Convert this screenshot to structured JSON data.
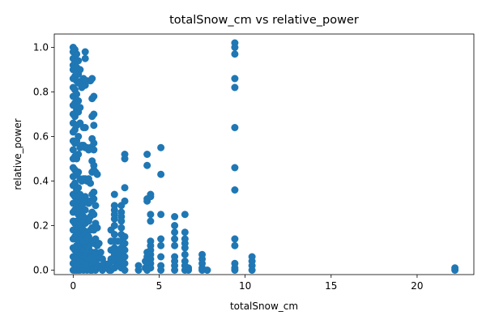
{
  "chart_data": {
    "type": "scatter",
    "title": "totalSnow_cm vs relative_power",
    "xlabel": "totalSnow_cm",
    "ylabel": "relative_power",
    "xlim": [
      -1.1,
      23.3
    ],
    "ylim": [
      -0.02,
      1.06
    ],
    "xticks": [
      0,
      5,
      10,
      15,
      20
    ],
    "xtick_labels": [
      "0",
      "5",
      "10",
      "15",
      "20"
    ],
    "yticks": [
      0.0,
      0.2,
      0.4,
      0.6,
      0.8,
      1.0
    ],
    "ytick_labels": [
      "0.0",
      "0.2",
      "0.4",
      "0.6",
      "0.8",
      "1.0"
    ],
    "grid": false,
    "marker_color": "#1f77b4",
    "series": [
      {
        "points": [
          [
            0.0,
            1.0
          ],
          [
            0.0,
            0.98
          ],
          [
            0.0,
            0.95
          ],
          [
            0.0,
            0.92
          ],
          [
            0.0,
            0.9
          ],
          [
            0.0,
            0.86
          ],
          [
            0.0,
            0.82
          ],
          [
            0.0,
            0.78
          ],
          [
            0.0,
            0.74
          ],
          [
            0.0,
            0.7
          ],
          [
            0.0,
            0.66
          ],
          [
            0.0,
            0.62
          ],
          [
            0.0,
            0.58
          ],
          [
            0.0,
            0.54
          ],
          [
            0.0,
            0.5
          ],
          [
            0.0,
            0.46
          ],
          [
            0.0,
            0.42
          ],
          [
            0.0,
            0.38
          ],
          [
            0.0,
            0.34
          ],
          [
            0.0,
            0.3
          ],
          [
            0.0,
            0.26
          ],
          [
            0.0,
            0.22
          ],
          [
            0.0,
            0.18
          ],
          [
            0.0,
            0.14
          ],
          [
            0.0,
            0.1
          ],
          [
            0.0,
            0.06
          ],
          [
            0.0,
            0.03
          ],
          [
            0.0,
            0.0
          ],
          [
            0.1,
            0.99
          ],
          [
            0.1,
            0.93
          ],
          [
            0.1,
            0.87
          ],
          [
            0.1,
            0.81
          ],
          [
            0.1,
            0.75
          ],
          [
            0.1,
            0.69
          ],
          [
            0.1,
            0.63
          ],
          [
            0.1,
            0.57
          ],
          [
            0.1,
            0.51
          ],
          [
            0.1,
            0.45
          ],
          [
            0.1,
            0.39
          ],
          [
            0.1,
            0.33
          ],
          [
            0.1,
            0.27
          ],
          [
            0.1,
            0.21
          ],
          [
            0.1,
            0.15
          ],
          [
            0.1,
            0.09
          ],
          [
            0.1,
            0.04
          ],
          [
            0.1,
            0.0
          ],
          [
            0.2,
            0.97
          ],
          [
            0.2,
            0.91
          ],
          [
            0.2,
            0.85
          ],
          [
            0.2,
            0.79
          ],
          [
            0.2,
            0.72
          ],
          [
            0.2,
            0.65
          ],
          [
            0.2,
            0.58
          ],
          [
            0.2,
            0.5
          ],
          [
            0.2,
            0.43
          ],
          [
            0.2,
            0.36
          ],
          [
            0.2,
            0.29
          ],
          [
            0.2,
            0.22
          ],
          [
            0.2,
            0.16
          ],
          [
            0.2,
            0.11
          ],
          [
            0.2,
            0.06
          ],
          [
            0.2,
            0.02
          ],
          [
            0.2,
            0.0
          ],
          [
            0.3,
            0.94
          ],
          [
            0.3,
            0.88
          ],
          [
            0.3,
            0.84
          ],
          [
            0.3,
            0.76
          ],
          [
            0.3,
            0.71
          ],
          [
            0.3,
            0.6
          ],
          [
            0.3,
            0.52
          ],
          [
            0.3,
            0.44
          ],
          [
            0.3,
            0.37
          ],
          [
            0.3,
            0.31
          ],
          [
            0.3,
            0.25
          ],
          [
            0.3,
            0.19
          ],
          [
            0.3,
            0.13
          ],
          [
            0.3,
            0.08
          ],
          [
            0.3,
            0.03
          ],
          [
            0.3,
            0.0
          ],
          [
            0.4,
            0.9
          ],
          [
            0.4,
            0.84
          ],
          [
            0.4,
            0.73
          ],
          [
            0.4,
            0.66
          ],
          [
            0.4,
            0.55
          ],
          [
            0.4,
            0.41
          ],
          [
            0.4,
            0.34
          ],
          [
            0.4,
            0.28
          ],
          [
            0.4,
            0.23
          ],
          [
            0.4,
            0.17
          ],
          [
            0.4,
            0.12
          ],
          [
            0.4,
            0.07
          ],
          [
            0.4,
            0.03
          ],
          [
            0.4,
            0.0
          ],
          [
            0.5,
            0.85
          ],
          [
            0.5,
            0.82
          ],
          [
            0.5,
            0.56
          ],
          [
            0.5,
            0.4
          ],
          [
            0.5,
            0.32
          ],
          [
            0.5,
            0.26
          ],
          [
            0.5,
            0.2
          ],
          [
            0.5,
            0.15
          ],
          [
            0.5,
            0.1
          ],
          [
            0.5,
            0.05
          ],
          [
            0.5,
            0.01
          ],
          [
            0.6,
            0.86
          ],
          [
            0.6,
            0.64
          ],
          [
            0.6,
            0.56
          ],
          [
            0.6,
            0.41
          ],
          [
            0.6,
            0.3
          ],
          [
            0.6,
            0.24
          ],
          [
            0.6,
            0.18
          ],
          [
            0.6,
            0.13
          ],
          [
            0.6,
            0.09
          ],
          [
            0.6,
            0.04
          ],
          [
            0.6,
            0.0
          ],
          [
            0.7,
            0.98
          ],
          [
            0.7,
            0.95
          ],
          [
            0.7,
            0.85
          ],
          [
            0.7,
            0.83
          ],
          [
            0.7,
            0.64
          ],
          [
            0.7,
            0.55
          ],
          [
            0.7,
            0.41
          ],
          [
            0.7,
            0.33
          ],
          [
            0.7,
            0.27
          ],
          [
            0.7,
            0.21
          ],
          [
            0.7,
            0.16
          ],
          [
            0.7,
            0.11
          ],
          [
            0.7,
            0.06
          ],
          [
            0.7,
            0.02
          ],
          [
            0.8,
            0.85
          ],
          [
            0.8,
            0.55
          ],
          [
            0.8,
            0.4
          ],
          [
            0.8,
            0.31
          ],
          [
            0.8,
            0.23
          ],
          [
            0.8,
            0.17
          ],
          [
            0.8,
            0.12
          ],
          [
            0.8,
            0.07
          ],
          [
            0.8,
            0.03
          ],
          [
            0.8,
            0.0
          ],
          [
            0.9,
            0.54
          ],
          [
            0.9,
            0.41
          ],
          [
            0.9,
            0.3
          ],
          [
            0.9,
            0.22
          ],
          [
            0.9,
            0.15
          ],
          [
            0.9,
            0.1
          ],
          [
            0.9,
            0.05
          ],
          [
            0.9,
            0.01
          ],
          [
            1.0,
            0.85
          ],
          [
            1.0,
            0.55
          ],
          [
            1.0,
            0.39
          ],
          [
            1.0,
            0.31
          ],
          [
            1.0,
            0.24
          ],
          [
            1.0,
            0.18
          ],
          [
            1.0,
            0.12
          ],
          [
            1.0,
            0.07
          ],
          [
            1.0,
            0.03
          ],
          [
            1.0,
            0.0
          ],
          [
            1.1,
            0.86
          ],
          [
            1.1,
            0.77
          ],
          [
            1.1,
            0.69
          ],
          [
            1.1,
            0.59
          ],
          [
            1.1,
            0.49
          ],
          [
            1.1,
            0.44
          ],
          [
            1.1,
            0.34
          ],
          [
            1.1,
            0.26
          ],
          [
            1.1,
            0.19
          ],
          [
            1.1,
            0.13
          ],
          [
            1.1,
            0.08
          ],
          [
            1.1,
            0.03
          ],
          [
            1.1,
            0.0
          ],
          [
            1.2,
            0.78
          ],
          [
            1.2,
            0.7
          ],
          [
            1.2,
            0.65
          ],
          [
            1.2,
            0.57
          ],
          [
            1.2,
            0.54
          ],
          [
            1.2,
            0.47
          ],
          [
            1.2,
            0.45
          ],
          [
            1.2,
            0.35
          ],
          [
            1.2,
            0.32
          ],
          [
            1.2,
            0.25
          ],
          [
            1.2,
            0.18
          ],
          [
            1.2,
            0.12
          ],
          [
            1.2,
            0.06
          ],
          [
            1.2,
            0.01
          ],
          [
            1.3,
            0.44
          ],
          [
            1.3,
            0.29
          ],
          [
            1.3,
            0.21
          ],
          [
            1.3,
            0.14
          ],
          [
            1.3,
            0.08
          ],
          [
            1.3,
            0.03
          ],
          [
            1.3,
            0.0
          ],
          [
            1.4,
            0.43
          ],
          [
            1.4,
            0.19
          ],
          [
            1.4,
            0.11
          ],
          [
            1.4,
            0.05
          ],
          [
            1.4,
            0.01
          ],
          [
            1.5,
            0.12
          ],
          [
            1.5,
            0.06
          ],
          [
            1.5,
            0.02
          ],
          [
            1.6,
            0.08
          ],
          [
            1.6,
            0.01
          ],
          [
            1.7,
            0.05
          ],
          [
            1.7,
            0.0
          ],
          [
            1.8,
            0.03
          ],
          [
            1.9,
            0.01
          ],
          [
            2.0,
            0.01
          ],
          [
            2.1,
            0.03
          ],
          [
            2.1,
            0.0
          ],
          [
            2.2,
            0.18
          ],
          [
            2.2,
            0.13
          ],
          [
            2.2,
            0.09
          ],
          [
            2.2,
            0.05
          ],
          [
            2.2,
            0.0
          ],
          [
            2.4,
            0.34
          ],
          [
            2.4,
            0.29
          ],
          [
            2.4,
            0.27
          ],
          [
            2.4,
            0.25
          ],
          [
            2.4,
            0.23
          ],
          [
            2.4,
            0.2
          ],
          [
            2.4,
            0.16
          ],
          [
            2.4,
            0.13
          ],
          [
            2.4,
            0.1
          ],
          [
            2.4,
            0.07
          ],
          [
            2.4,
            0.04
          ],
          [
            2.4,
            0.01
          ],
          [
            2.6,
            0.13
          ],
          [
            2.6,
            0.09
          ],
          [
            2.6,
            0.05
          ],
          [
            2.6,
            0.02
          ],
          [
            2.8,
            0.29
          ],
          [
            2.8,
            0.26
          ],
          [
            2.8,
            0.24
          ],
          [
            2.8,
            0.22
          ],
          [
            2.8,
            0.19
          ],
          [
            2.8,
            0.16
          ],
          [
            2.8,
            0.13
          ],
          [
            2.8,
            0.1
          ],
          [
            2.8,
            0.07
          ],
          [
            2.8,
            0.04
          ],
          [
            2.8,
            0.01
          ],
          [
            3.0,
            0.52
          ],
          [
            3.0,
            0.5
          ],
          [
            3.0,
            0.37
          ],
          [
            3.0,
            0.31
          ],
          [
            3.0,
            0.15
          ],
          [
            3.0,
            0.12
          ],
          [
            3.0,
            0.09
          ],
          [
            3.0,
            0.06
          ],
          [
            3.0,
            0.03
          ],
          [
            3.0,
            0.0
          ],
          [
            3.8,
            0.02
          ],
          [
            3.8,
            0.0
          ],
          [
            4.2,
            0.04
          ],
          [
            4.2,
            0.01
          ],
          [
            4.3,
            0.52
          ],
          [
            4.3,
            0.47
          ],
          [
            4.3,
            0.32
          ],
          [
            4.3,
            0.31
          ],
          [
            4.3,
            0.08
          ],
          [
            4.3,
            0.06
          ],
          [
            4.3,
            0.03
          ],
          [
            4.3,
            0.0
          ],
          [
            4.5,
            0.34
          ],
          [
            4.5,
            0.33
          ],
          [
            4.5,
            0.25
          ],
          [
            4.5,
            0.22
          ],
          [
            4.5,
            0.13
          ],
          [
            4.5,
            0.11
          ],
          [
            4.5,
            0.09
          ],
          [
            4.5,
            0.07
          ],
          [
            4.5,
            0.05
          ],
          [
            4.5,
            0.03
          ],
          [
            4.5,
            0.01
          ],
          [
            5.1,
            0.55
          ],
          [
            5.1,
            0.43
          ],
          [
            5.1,
            0.25
          ],
          [
            5.1,
            0.14
          ],
          [
            5.1,
            0.11
          ],
          [
            5.1,
            0.06
          ],
          [
            5.1,
            0.02
          ],
          [
            5.1,
            0.0
          ],
          [
            5.9,
            0.24
          ],
          [
            5.9,
            0.2
          ],
          [
            5.9,
            0.17
          ],
          [
            5.9,
            0.14
          ],
          [
            5.9,
            0.11
          ],
          [
            5.9,
            0.06
          ],
          [
            5.9,
            0.04
          ],
          [
            5.9,
            0.02
          ],
          [
            5.9,
            0.0
          ],
          [
            6.5,
            0.25
          ],
          [
            6.5,
            0.17
          ],
          [
            6.5,
            0.14
          ],
          [
            6.5,
            0.12
          ],
          [
            6.5,
            0.1
          ],
          [
            6.5,
            0.07
          ],
          [
            6.5,
            0.04
          ],
          [
            6.5,
            0.02
          ],
          [
            6.5,
            0.0
          ],
          [
            6.7,
            0.01
          ],
          [
            6.7,
            0.0
          ],
          [
            7.5,
            0.07
          ],
          [
            7.5,
            0.05
          ],
          [
            7.5,
            0.03
          ],
          [
            7.5,
            0.01
          ],
          [
            7.5,
            0.0
          ],
          [
            7.8,
            0.0
          ],
          [
            9.4,
            1.02
          ],
          [
            9.4,
            1.0
          ],
          [
            9.4,
            0.97
          ],
          [
            9.4,
            0.86
          ],
          [
            9.4,
            0.82
          ],
          [
            9.4,
            0.64
          ],
          [
            9.4,
            0.46
          ],
          [
            9.4,
            0.36
          ],
          [
            9.4,
            0.14
          ],
          [
            9.4,
            0.11
          ],
          [
            9.4,
            0.03
          ],
          [
            9.4,
            0.01
          ],
          [
            9.4,
            0.0
          ],
          [
            10.4,
            0.06
          ],
          [
            10.4,
            0.04
          ],
          [
            10.4,
            0.02
          ],
          [
            10.4,
            0.0
          ],
          [
            22.2,
            0.01
          ],
          [
            22.2,
            0.0
          ]
        ]
      }
    ]
  }
}
